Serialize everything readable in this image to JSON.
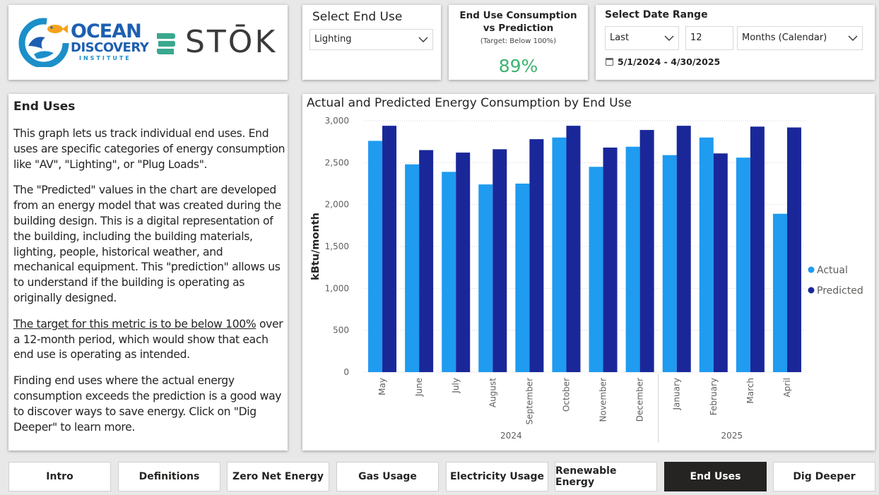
{
  "logos": {
    "odi": {
      "line1": "OCEAN",
      "line2": "DISCOVERY",
      "line3": "INSTITUTE"
    },
    "stok": {
      "text": "STŌK"
    }
  },
  "end_use_slicer": {
    "title": "Select End Use",
    "selected": "Lighting"
  },
  "kpi": {
    "title_line1": "End Use Consumption",
    "title_line2": "vs Prediction",
    "subtitle": "(Target: Below 100%)",
    "value": "89%",
    "value_color": "#3cb371"
  },
  "date_slicer": {
    "title": "Select Date Range",
    "relative": "Last",
    "count": "12",
    "unit": "Months (Calendar)",
    "range": "5/1/2024 - 4/30/2025"
  },
  "description": {
    "title": "End Uses",
    "p1": "This graph lets us track individual end uses. End uses are specific categories of energy consumption like \"AV\", \"Lighting\", or \"Plug Loads\".",
    "p2": "The \"Predicted\" values in the chart are developed from an energy model that was created during the building design. This is a digital representation of the building, including the building materials, lighting, people, historical weather, and mechanical equipment. This \"prediction\" allows us to understand if the building is operating as originally designed.",
    "p3_underlined": "The target for this metric is to be below 100%",
    "p3_rest": " over a 12-month period, which would show that each end use is operating as intended.",
    "p4": "Finding end uses where the actual energy consumption exceeds the prediction is a good way to discover ways to save energy. Click on \"Dig Deeper\" to learn more."
  },
  "nav": {
    "tabs": [
      {
        "label": "Intro",
        "active": false
      },
      {
        "label": "Definitions",
        "active": false
      },
      {
        "label": "Zero Net Energy",
        "active": false
      },
      {
        "label": "Gas Usage",
        "active": false
      },
      {
        "label": "Electricity Usage",
        "active": false
      },
      {
        "label": "Renewable Energy",
        "active": false
      },
      {
        "label": "End Uses",
        "active": true
      },
      {
        "label": "Dig Deeper",
        "active": false
      }
    ]
  },
  "chart_data": {
    "type": "bar",
    "title": "Actual and Predicted Energy Consumption by End Use",
    "xlabel": "",
    "ylabel": "kBtu/month",
    "ylim": [
      0,
      3000
    ],
    "yticks": [
      0,
      500,
      1000,
      1500,
      2000,
      2500,
      3000
    ],
    "ytick_labels": [
      "0",
      "500",
      "1,000",
      "1,500",
      "2,000",
      "2,500",
      "3,000"
    ],
    "categories": [
      "May",
      "June",
      "July",
      "August",
      "September",
      "October",
      "November",
      "December",
      "January",
      "February",
      "March",
      "April"
    ],
    "year_groups": [
      {
        "label": "2024",
        "start": 0,
        "end": 7
      },
      {
        "label": "2025",
        "start": 8,
        "end": 11
      }
    ],
    "series": [
      {
        "name": "Actual",
        "color": "#1f9bf0",
        "values": [
          2760,
          2480,
          2390,
          2240,
          2250,
          2800,
          2450,
          2690,
          2590,
          2800,
          2560,
          1890
        ]
      },
      {
        "name": "Predicted",
        "color": "#1a2799",
        "values": [
          2940,
          2650,
          2620,
          2660,
          2780,
          2940,
          2680,
          2890,
          2940,
          2610,
          2930,
          2920
        ]
      }
    ],
    "legend_position": "right",
    "grid": true
  }
}
